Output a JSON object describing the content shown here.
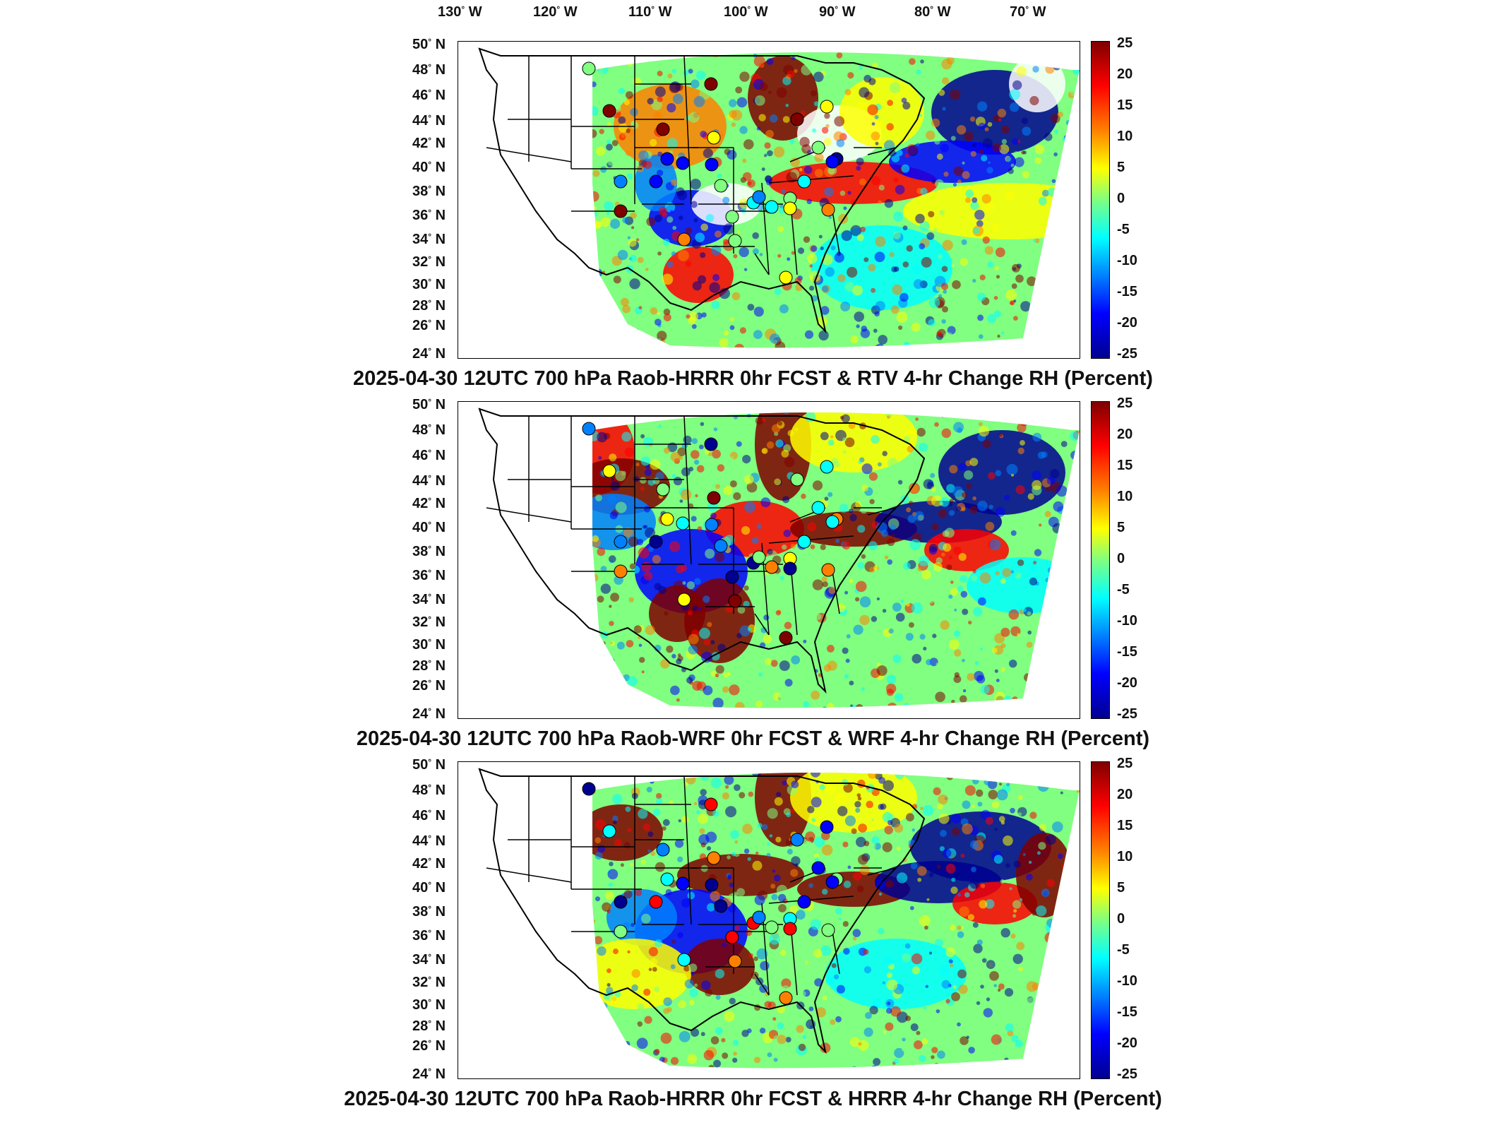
{
  "lon_labels": [
    {
      "deg": "130",
      "hem": "W"
    },
    {
      "deg": "120",
      "hem": "W"
    },
    {
      "deg": "110",
      "hem": "W"
    },
    {
      "deg": "100",
      "hem": "W"
    },
    {
      "deg": "90",
      "hem": "W"
    },
    {
      "deg": "80",
      "hem": "W"
    },
    {
      "deg": "70",
      "hem": "W"
    }
  ],
  "lat_labels": [
    {
      "deg": "50",
      "hem": "N"
    },
    {
      "deg": "48",
      "hem": "N"
    },
    {
      "deg": "46",
      "hem": "N"
    },
    {
      "deg": "44",
      "hem": "N"
    },
    {
      "deg": "42",
      "hem": "N"
    },
    {
      "deg": "40",
      "hem": "N"
    },
    {
      "deg": "38",
      "hem": "N"
    },
    {
      "deg": "36",
      "hem": "N"
    },
    {
      "deg": "34",
      "hem": "N"
    },
    {
      "deg": "32",
      "hem": "N"
    },
    {
      "deg": "30",
      "hem": "N"
    },
    {
      "deg": "28",
      "hem": "N"
    },
    {
      "deg": "26",
      "hem": "N"
    },
    {
      "deg": "24",
      "hem": "N"
    }
  ],
  "colorbar": {
    "ticks": [
      "25",
      "20",
      "15",
      "10",
      "5",
      "0",
      "-5",
      "-10",
      "-15",
      "-20",
      "-25"
    ],
    "colors": [
      "#7f0000",
      "#ff0000",
      "#ff8000",
      "#ffff00",
      "#80ff80",
      "#00ffff",
      "#0080ff",
      "#0000ff",
      "#00008f"
    ]
  },
  "panels": [
    {
      "title": "2025-04-30 12UTC 700 hPa Raob-HRRR 0hr FCST & RTV 4-hr Change RH (Percent)"
    },
    {
      "title": "2025-04-30 12UTC 700 hPa Raob-WRF 0hr FCST & WRF 4-hr Change RH (Percent)"
    },
    {
      "title": "2025-04-30 12UTC 700 hPa Raob-HRRR 0hr FCST & HRRR 4-hr Change RH (Percent)"
    }
  ]
}
